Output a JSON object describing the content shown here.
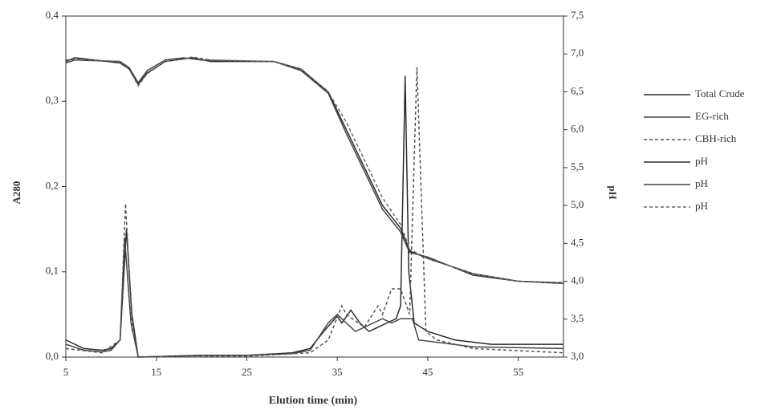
{
  "chart_data": {
    "type": "line",
    "xlabel": "Elution time (min)",
    "ylabel": "A280",
    "y2label": "pH",
    "xlim": [
      5,
      60
    ],
    "xticks": [
      5,
      15,
      25,
      35,
      45,
      55
    ],
    "ylim": [
      0,
      0.4
    ],
    "yticks": [
      {
        "value": 0,
        "label": "0,0"
      },
      {
        "value": 0.1,
        "label": "0,1"
      },
      {
        "value": 0.2,
        "label": "0,2"
      },
      {
        "value": 0.3,
        "label": "0,3"
      },
      {
        "value": 0.4,
        "label": "0,4"
      }
    ],
    "y2lim": [
      3,
      7.5
    ],
    "y2ticks": [
      {
        "value": 3,
        "label": "3,0"
      },
      {
        "value": 3.5,
        "label": "3,5"
      },
      {
        "value": 4,
        "label": "4,0"
      },
      {
        "value": 4.5,
        "label": "4,5"
      },
      {
        "value": 5,
        "label": "5,0"
      },
      {
        "value": 5.5,
        "label": "5,5"
      },
      {
        "value": 6,
        "label": "6,0"
      },
      {
        "value": 6.5,
        "label": "6,5"
      },
      {
        "value": 7,
        "label": "7,0"
      },
      {
        "value": 7.5,
        "label": "7,5"
      }
    ],
    "legend": "right",
    "series": [
      {
        "name": "Total Crude",
        "color": "#2b2b2b",
        "linestyle": "solid",
        "x": [
          5,
          7,
          9,
          10,
          11,
          11.7,
          12.3,
          13,
          20,
          25,
          30,
          32,
          33.5,
          35,
          35.5,
          36.5,
          37.5,
          38.5,
          39.5,
          40.5,
          41.5,
          42,
          42.5,
          42.9,
          43.5,
          45,
          48,
          52,
          60
        ],
        "values": [
          0.02,
          0.01,
          0.008,
          0.01,
          0.02,
          0.15,
          0.05,
          0,
          0.002,
          0.002,
          0.005,
          0.01,
          0.03,
          0.048,
          0.04,
          0.055,
          0.04,
          0.03,
          0.035,
          0.04,
          0.045,
          0.06,
          0.33,
          0.1,
          0.04,
          0.03,
          0.02,
          0.015,
          0.015
        ]
      },
      {
        "name": "EG-rich",
        "color": "#444444",
        "linestyle": "solid",
        "x": [
          5,
          7,
          9,
          10,
          11,
          11.5,
          12.2,
          13,
          20,
          25,
          30,
          32,
          34,
          35,
          37,
          39,
          40,
          41,
          42,
          43,
          43.3,
          44,
          50,
          60
        ],
        "values": [
          0.015,
          0.008,
          0.006,
          0.008,
          0.02,
          0.14,
          0.04,
          0,
          0.002,
          0.002,
          0.004,
          0.008,
          0.04,
          0.05,
          0.03,
          0.04,
          0.045,
          0.04,
          0.045,
          0.045,
          0.045,
          0.02,
          0.012,
          0.01
        ]
      },
      {
        "name": "CBH-rich",
        "color": "#555555",
        "linestyle": "dashed",
        "x": [
          5,
          9,
          11,
          11.6,
          12.3,
          13,
          25,
          32,
          34,
          35.5,
          36,
          38,
          39.5,
          40,
          41,
          42,
          43,
          43.8,
          44.8,
          46,
          50,
          60
        ],
        "values": [
          0.01,
          0.005,
          0.02,
          0.18,
          0.04,
          0,
          0.001,
          0.005,
          0.02,
          0.06,
          0.05,
          0.035,
          0.06,
          0.05,
          0.08,
          0.08,
          0.05,
          0.34,
          0.03,
          0.02,
          0.01,
          0.005
        ]
      },
      {
        "name": "pH",
        "color": "#2b2b2b",
        "linestyle": "solid",
        "axis": "y2",
        "x": [
          5,
          6,
          11,
          12,
          13,
          14,
          16,
          19,
          21,
          28,
          31,
          34,
          36,
          38,
          40,
          42,
          43,
          45,
          50,
          55,
          60
        ],
        "values": [
          6.9,
          6.95,
          6.88,
          6.8,
          6.6,
          6.75,
          6.9,
          6.95,
          6.9,
          6.9,
          6.8,
          6.5,
          6.0,
          5.5,
          5.0,
          4.7,
          4.4,
          4.3,
          4.1,
          4.0,
          3.98
        ]
      },
      {
        "name": "pH",
        "color": "#444444",
        "linestyle": "solid",
        "axis": "y2",
        "x": [
          5,
          6,
          11,
          12,
          13,
          14,
          16,
          18,
          20,
          28,
          31,
          34,
          36,
          38,
          40,
          42,
          43,
          45,
          50,
          55,
          60
        ],
        "values": [
          6.88,
          6.92,
          6.9,
          6.82,
          6.62,
          6.78,
          6.92,
          6.95,
          6.92,
          6.9,
          6.78,
          6.48,
          5.95,
          5.45,
          4.95,
          4.65,
          4.38,
          4.32,
          4.08,
          4.0,
          3.97
        ]
      },
      {
        "name": "pH",
        "color": "#666666",
        "linestyle": "dashed",
        "axis": "y2",
        "x": [
          5,
          6,
          11,
          12,
          13,
          14,
          16,
          19,
          21,
          28,
          31,
          34,
          36,
          38,
          40,
          42,
          43,
          45,
          50,
          55,
          60
        ],
        "values": [
          6.92,
          6.93,
          6.9,
          6.8,
          6.58,
          6.74,
          6.9,
          6.96,
          6.92,
          6.9,
          6.8,
          6.5,
          6.1,
          5.6,
          5.1,
          4.75,
          4.42,
          4.3,
          4.1,
          4.0,
          3.98
        ]
      }
    ]
  }
}
